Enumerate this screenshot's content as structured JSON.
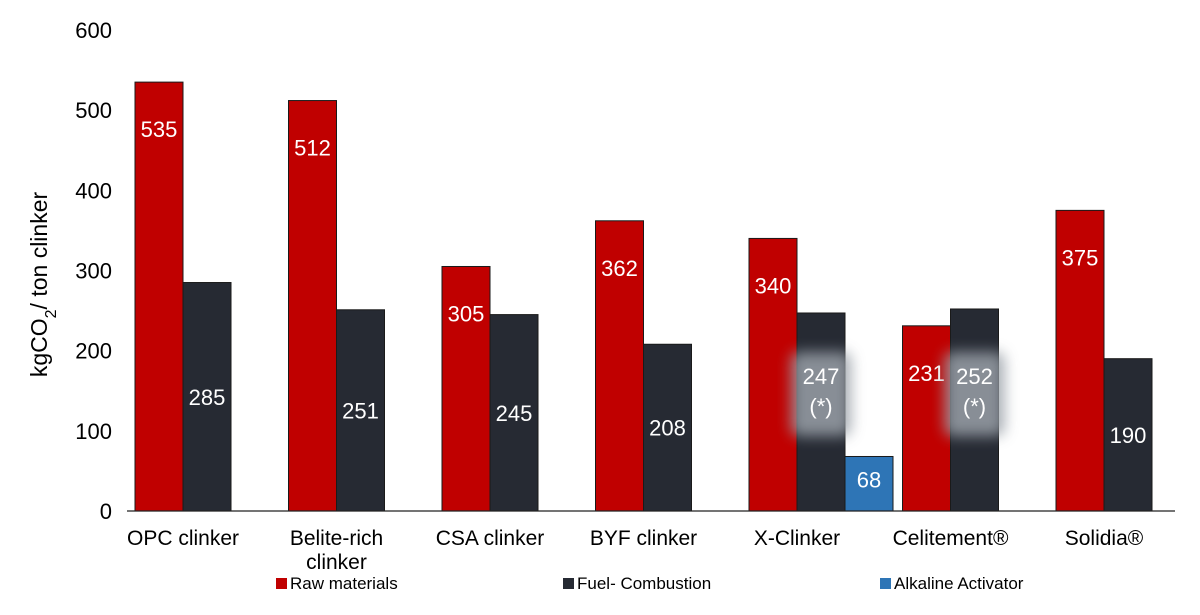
{
  "chart_data": {
    "type": "bar",
    "title": "",
    "xlabel": "",
    "ylabel": "kgCO2/ ton clinker",
    "ylim": [
      0,
      600
    ],
    "yticks": [
      0,
      100,
      200,
      300,
      400,
      500,
      600
    ],
    "grid": false,
    "legend_position": "bottom",
    "categories": [
      [
        "OPC clinker"
      ],
      [
        "Belite-rich",
        "clinker"
      ],
      [
        "CSA clinker"
      ],
      [
        "BYF clinker"
      ],
      [
        "X-Clinker"
      ],
      [
        "Celitement®"
      ],
      [
        "Solidia®"
      ]
    ],
    "series": [
      {
        "name": "Raw materials",
        "color": "#c00000",
        "values": [
          535,
          512,
          305,
          362,
          340,
          231,
          375
        ],
        "labels": [
          "535",
          "512",
          "305",
          "362",
          "340",
          "231",
          "375"
        ]
      },
      {
        "name": "Fuel- Combustion",
        "color": "#262a33",
        "values": [
          285,
          251,
          245,
          208,
          247,
          252,
          190
        ],
        "labels": [
          "285",
          "251",
          "245",
          "208",
          "247",
          "252",
          "190"
        ],
        "notes": [
          "",
          "",
          "",
          "",
          "(*)",
          "(*)",
          ""
        ]
      },
      {
        "name": "Alkaline Activator",
        "color": "#2e75b6",
        "values": [
          null,
          null,
          null,
          null,
          68,
          null,
          null
        ],
        "labels": [
          "",
          "",
          "",
          "",
          "68",
          "",
          ""
        ]
      }
    ]
  }
}
